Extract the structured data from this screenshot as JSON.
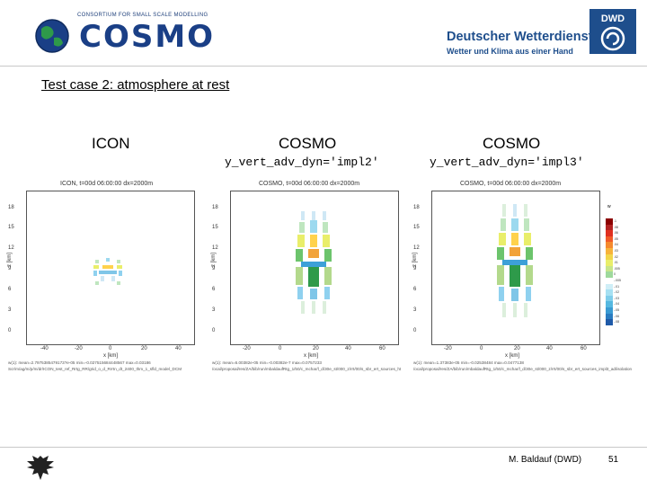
{
  "header": {
    "cosmo_tagline": "CONSORTIUM FOR SMALL SCALE MODELLING",
    "cosmo_wordmark": "COSMO",
    "dwd_badge": "DWD",
    "dwd_name": "Deutscher Wetterdienst",
    "dwd_slogan": "Wetter und Klima aus einer Hand"
  },
  "slide": {
    "title": "Test case 2: atmosphere at rest"
  },
  "columns": [
    {
      "title": "ICON",
      "subtitle": ""
    },
    {
      "title": "COSMO",
      "subtitle": "y_vert_adv_dyn='impl2'"
    },
    {
      "title": "COSMO",
      "subtitle": "y_vert_adv_dyn='impl3'"
    }
  ],
  "panels": [
    {
      "plot_title": "ICON, t=00d 06:00:00 dx=2000m",
      "info_line_1": "w(1): mean=2.7975385479173?e-05  min=-0.027515684448567  max=0.03186",
      "info_line_2": "Scr/m/ag/m/p/m/dr/ICON_test_ref_Rrtg_RR/grid_o_d_Rrrtn_dt_2400_thm_1_sfld_model_DCM"
    },
    {
      "plot_title": "COSMO, t=00d 06:00:00 dx=2000m",
      "info_line_1": "w(1): mean=6.00382e-05  min=-0.00382e-7  max=0.0757233",
      "info_line_2": "/ocal/proposal/res/ZA/bib/run/mbaldaufRtg_1/50/c_mchar/l_d/30e_st/000_z/rrt/00/s_sbr_ert_sources_ht"
    },
    {
      "plot_title": "COSMO, t=00d 06:00:00 dx=2000m",
      "info_line_1": "w(1): mean=1.37383e-05  min=-0.02538484  max=0.0477138",
      "info_line_2": "/ocal/proposal/res/ZA/bib/run/mbaldaufRtg_1/50/c_mchar/l_d/30e_st/000_z/rrt/00/s_sbr_ert_sources_impl3_ad/isolation"
    }
  ],
  "axes": {
    "y_ticks": [
      "18",
      "15",
      "12",
      "9",
      "6",
      "3",
      "0"
    ],
    "x_ticks_icon": [
      "-40",
      "-20",
      "0",
      "20",
      "40"
    ],
    "x_ticks_cosmo": [
      "-20",
      "0",
      "20",
      "40",
      "60"
    ],
    "xlabel": "x [km]",
    "ylabel": "z [km]"
  },
  "colorbar": {
    "title": "w",
    "labels": [
      ".1",
      ".08",
      ".06",
      ".05",
      ".04",
      ".03",
      ".02",
      ".01",
      ".005",
      "0",
      "-.005",
      "-.01",
      "-.02",
      "-.03",
      "-.04",
      "-.05",
      "-.06",
      "-.08"
    ]
  },
  "footer": {
    "author": "M. Baldauf (DWD)",
    "page_number": "51"
  },
  "colors": {
    "dwd_blue": "#1e4e8c",
    "cosmo_blue": "#1a3f86",
    "cosmo_green": "#2e9a4a"
  }
}
